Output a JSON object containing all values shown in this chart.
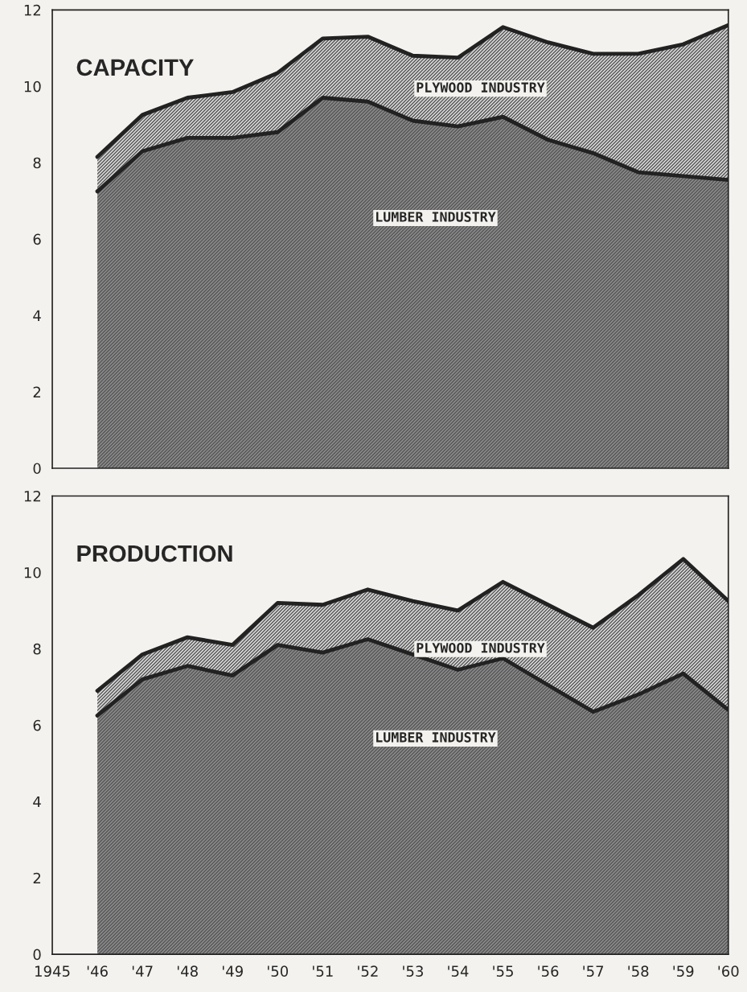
{
  "chart_data": [
    {
      "type": "area",
      "title": "CAPACITY",
      "stacked": true,
      "x": [
        1946,
        1947,
        1948,
        1949,
        1950,
        1951,
        1952,
        1953,
        1954,
        1955,
        1956,
        1957,
        1958,
        1959,
        1960
      ],
      "series": [
        {
          "name": "LUMBER INDUSTRY",
          "color": "#8c8c8c",
          "values": [
            7.25,
            8.3,
            8.65,
            8.65,
            8.8,
            9.7,
            9.6,
            9.1,
            8.95,
            9.2,
            8.6,
            8.25,
            7.75,
            7.65,
            7.55
          ]
        },
        {
          "name": "PLYWOOD INDUSTRY",
          "color": "#dcdcdc",
          "values": [
            0.9,
            0.95,
            1.05,
            1.2,
            1.55,
            1.55,
            1.7,
            1.7,
            1.8,
            2.35,
            2.55,
            2.6,
            3.1,
            3.45,
            4.05
          ]
        }
      ],
      "xlim": [
        1945,
        1960
      ],
      "xticks": [
        {
          "value": 1945,
          "label": null
        },
        {
          "value": 1946,
          "label": null
        },
        {
          "value": 1947,
          "label": null
        },
        {
          "value": 1948,
          "label": null
        },
        {
          "value": 1949,
          "label": null
        },
        {
          "value": 1950,
          "label": null
        },
        {
          "value": 1951,
          "label": null
        },
        {
          "value": 1952,
          "label": null
        },
        {
          "value": 1953,
          "label": null
        },
        {
          "value": 1954,
          "label": null
        },
        {
          "value": 1955,
          "label": null
        },
        {
          "value": 1956,
          "label": null
        },
        {
          "value": 1957,
          "label": null
        },
        {
          "value": 1958,
          "label": null
        },
        {
          "value": 1959,
          "label": null
        },
        {
          "value": 1960,
          "label": null
        }
      ],
      "ylim": [
        0,
        12
      ],
      "yticks": [
        0,
        2,
        4,
        6,
        8,
        10,
        12
      ],
      "tick_labels": "y"
    },
    {
      "type": "area",
      "title": "PRODUCTION",
      "stacked": true,
      "x": [
        1946,
        1947,
        1948,
        1949,
        1950,
        1951,
        1952,
        1953,
        1954,
        1955,
        1956,
        1957,
        1958,
        1959,
        1960
      ],
      "series": [
        {
          "name": "LUMBER INDUSTRY",
          "color": "#8c8c8c",
          "values": [
            6.25,
            7.2,
            7.55,
            7.3,
            8.1,
            7.9,
            8.25,
            7.85,
            7.45,
            7.75,
            7.05,
            6.35,
            6.8,
            7.35,
            6.4
          ]
        },
        {
          "name": "PLYWOOD INDUSTRY",
          "color": "#dcdcdc",
          "values": [
            0.65,
            0.65,
            0.75,
            0.8,
            1.1,
            1.25,
            1.3,
            1.4,
            1.55,
            2.0,
            2.1,
            2.2,
            2.6,
            3.0,
            2.85
          ]
        }
      ],
      "xlim": [
        1945,
        1960
      ],
      "xticks": [
        {
          "value": 1945,
          "label": "1945"
        },
        {
          "value": 1946,
          "label": "'46"
        },
        {
          "value": 1947,
          "label": "'47"
        },
        {
          "value": 1948,
          "label": "'48"
        },
        {
          "value": 1949,
          "label": "'49"
        },
        {
          "value": 1950,
          "label": "'50"
        },
        {
          "value": 1951,
          "label": "'51"
        },
        {
          "value": 1952,
          "label": "'52"
        },
        {
          "value": 1953,
          "label": "'53"
        },
        {
          "value": 1954,
          "label": "'54"
        },
        {
          "value": 1955,
          "label": "'55"
        },
        {
          "value": 1956,
          "label": "'56"
        },
        {
          "value": 1957,
          "label": "'57"
        },
        {
          "value": 1958,
          "label": "'58"
        },
        {
          "value": 1959,
          "label": "'59"
        },
        {
          "value": 1960,
          "label": "'60"
        }
      ],
      "ylim": [
        0,
        12
      ],
      "yticks": [
        0,
        2,
        4,
        6,
        8,
        10,
        12
      ]
    }
  ]
}
